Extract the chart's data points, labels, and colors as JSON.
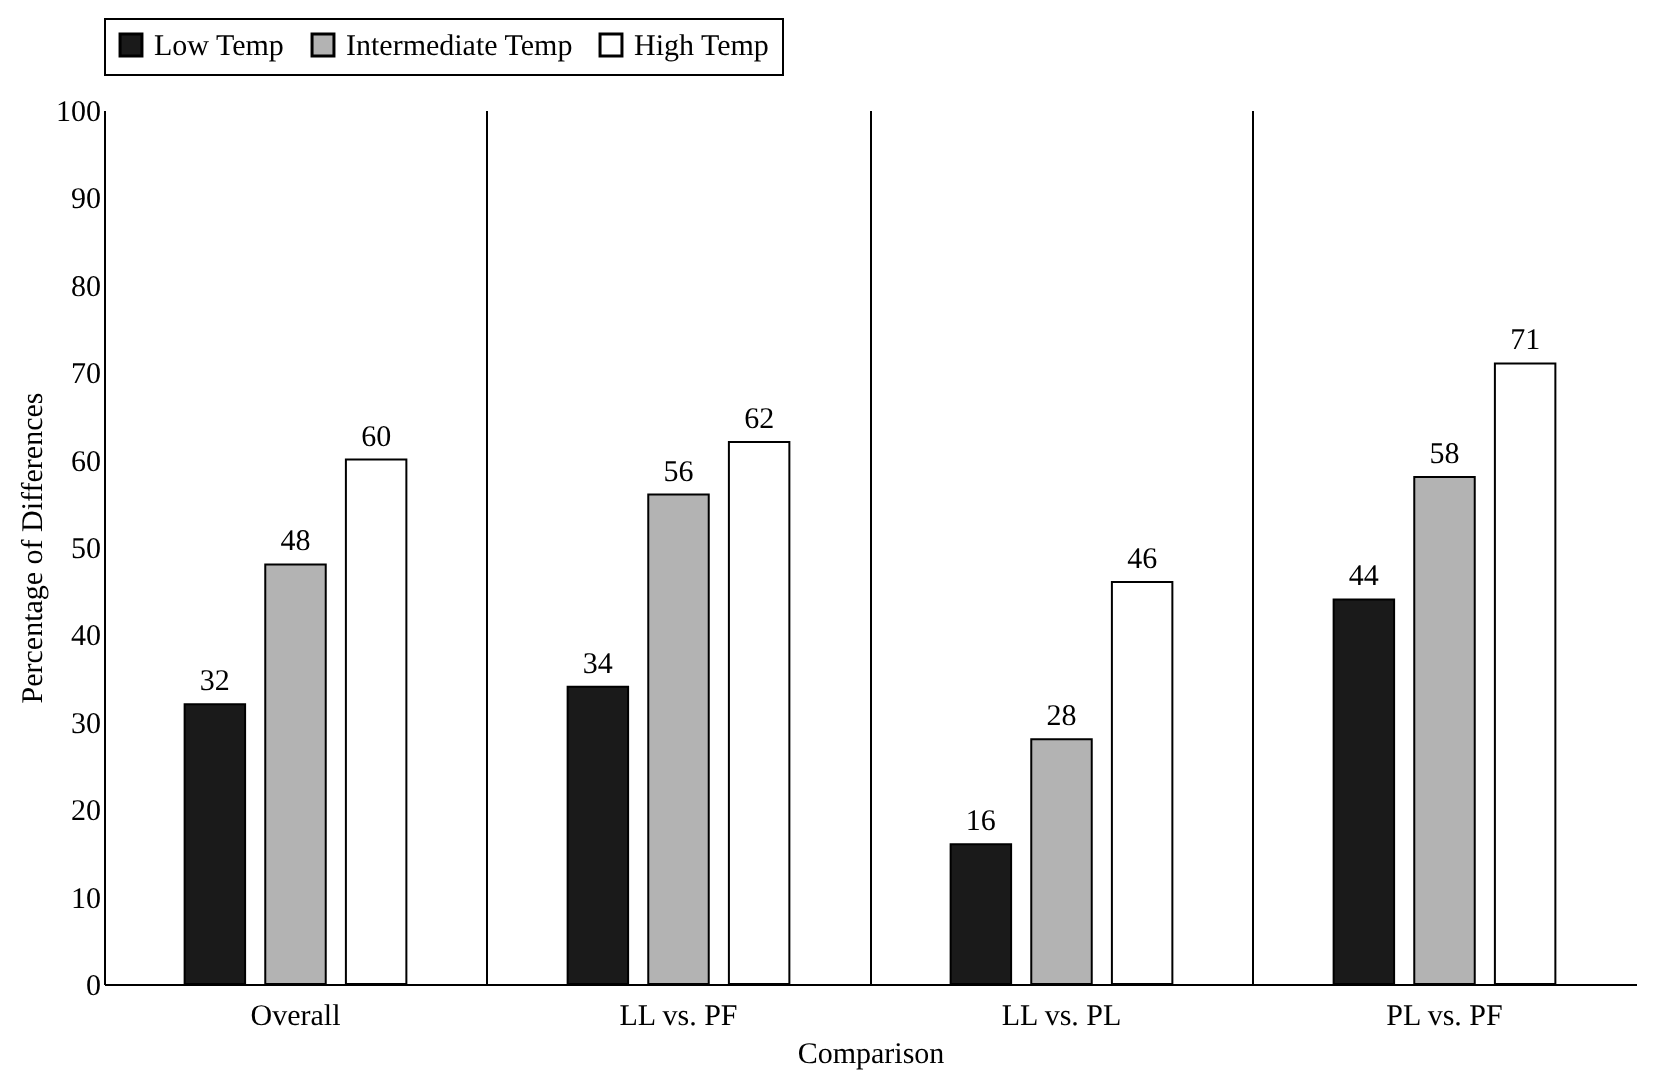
{
  "chart_data": {
    "type": "bar",
    "xlabel": "Comparison",
    "ylabel": "Percentage of Differences",
    "categories": [
      "Overall",
      "LL vs. PF",
      "LL vs. PL",
      "PL vs. PF"
    ],
    "series": [
      {
        "name": "Low Temp",
        "color": "#1a1a1a",
        "values": [
          32,
          34,
          16,
          44
        ]
      },
      {
        "name": "Intermediate Temp",
        "color": "#b3b3b3",
        "values": [
          48,
          56,
          28,
          58
        ]
      },
      {
        "name": "High Temp",
        "color": "#ffffff",
        "values": [
          60,
          62,
          46,
          71
        ]
      }
    ],
    "ylim": [
      0,
      100
    ],
    "yticks": [
      0,
      10,
      20,
      30,
      40,
      50,
      60,
      70,
      80,
      90,
      100
    ],
    "grid": "x",
    "legend": "top",
    "data_labels": true
  }
}
